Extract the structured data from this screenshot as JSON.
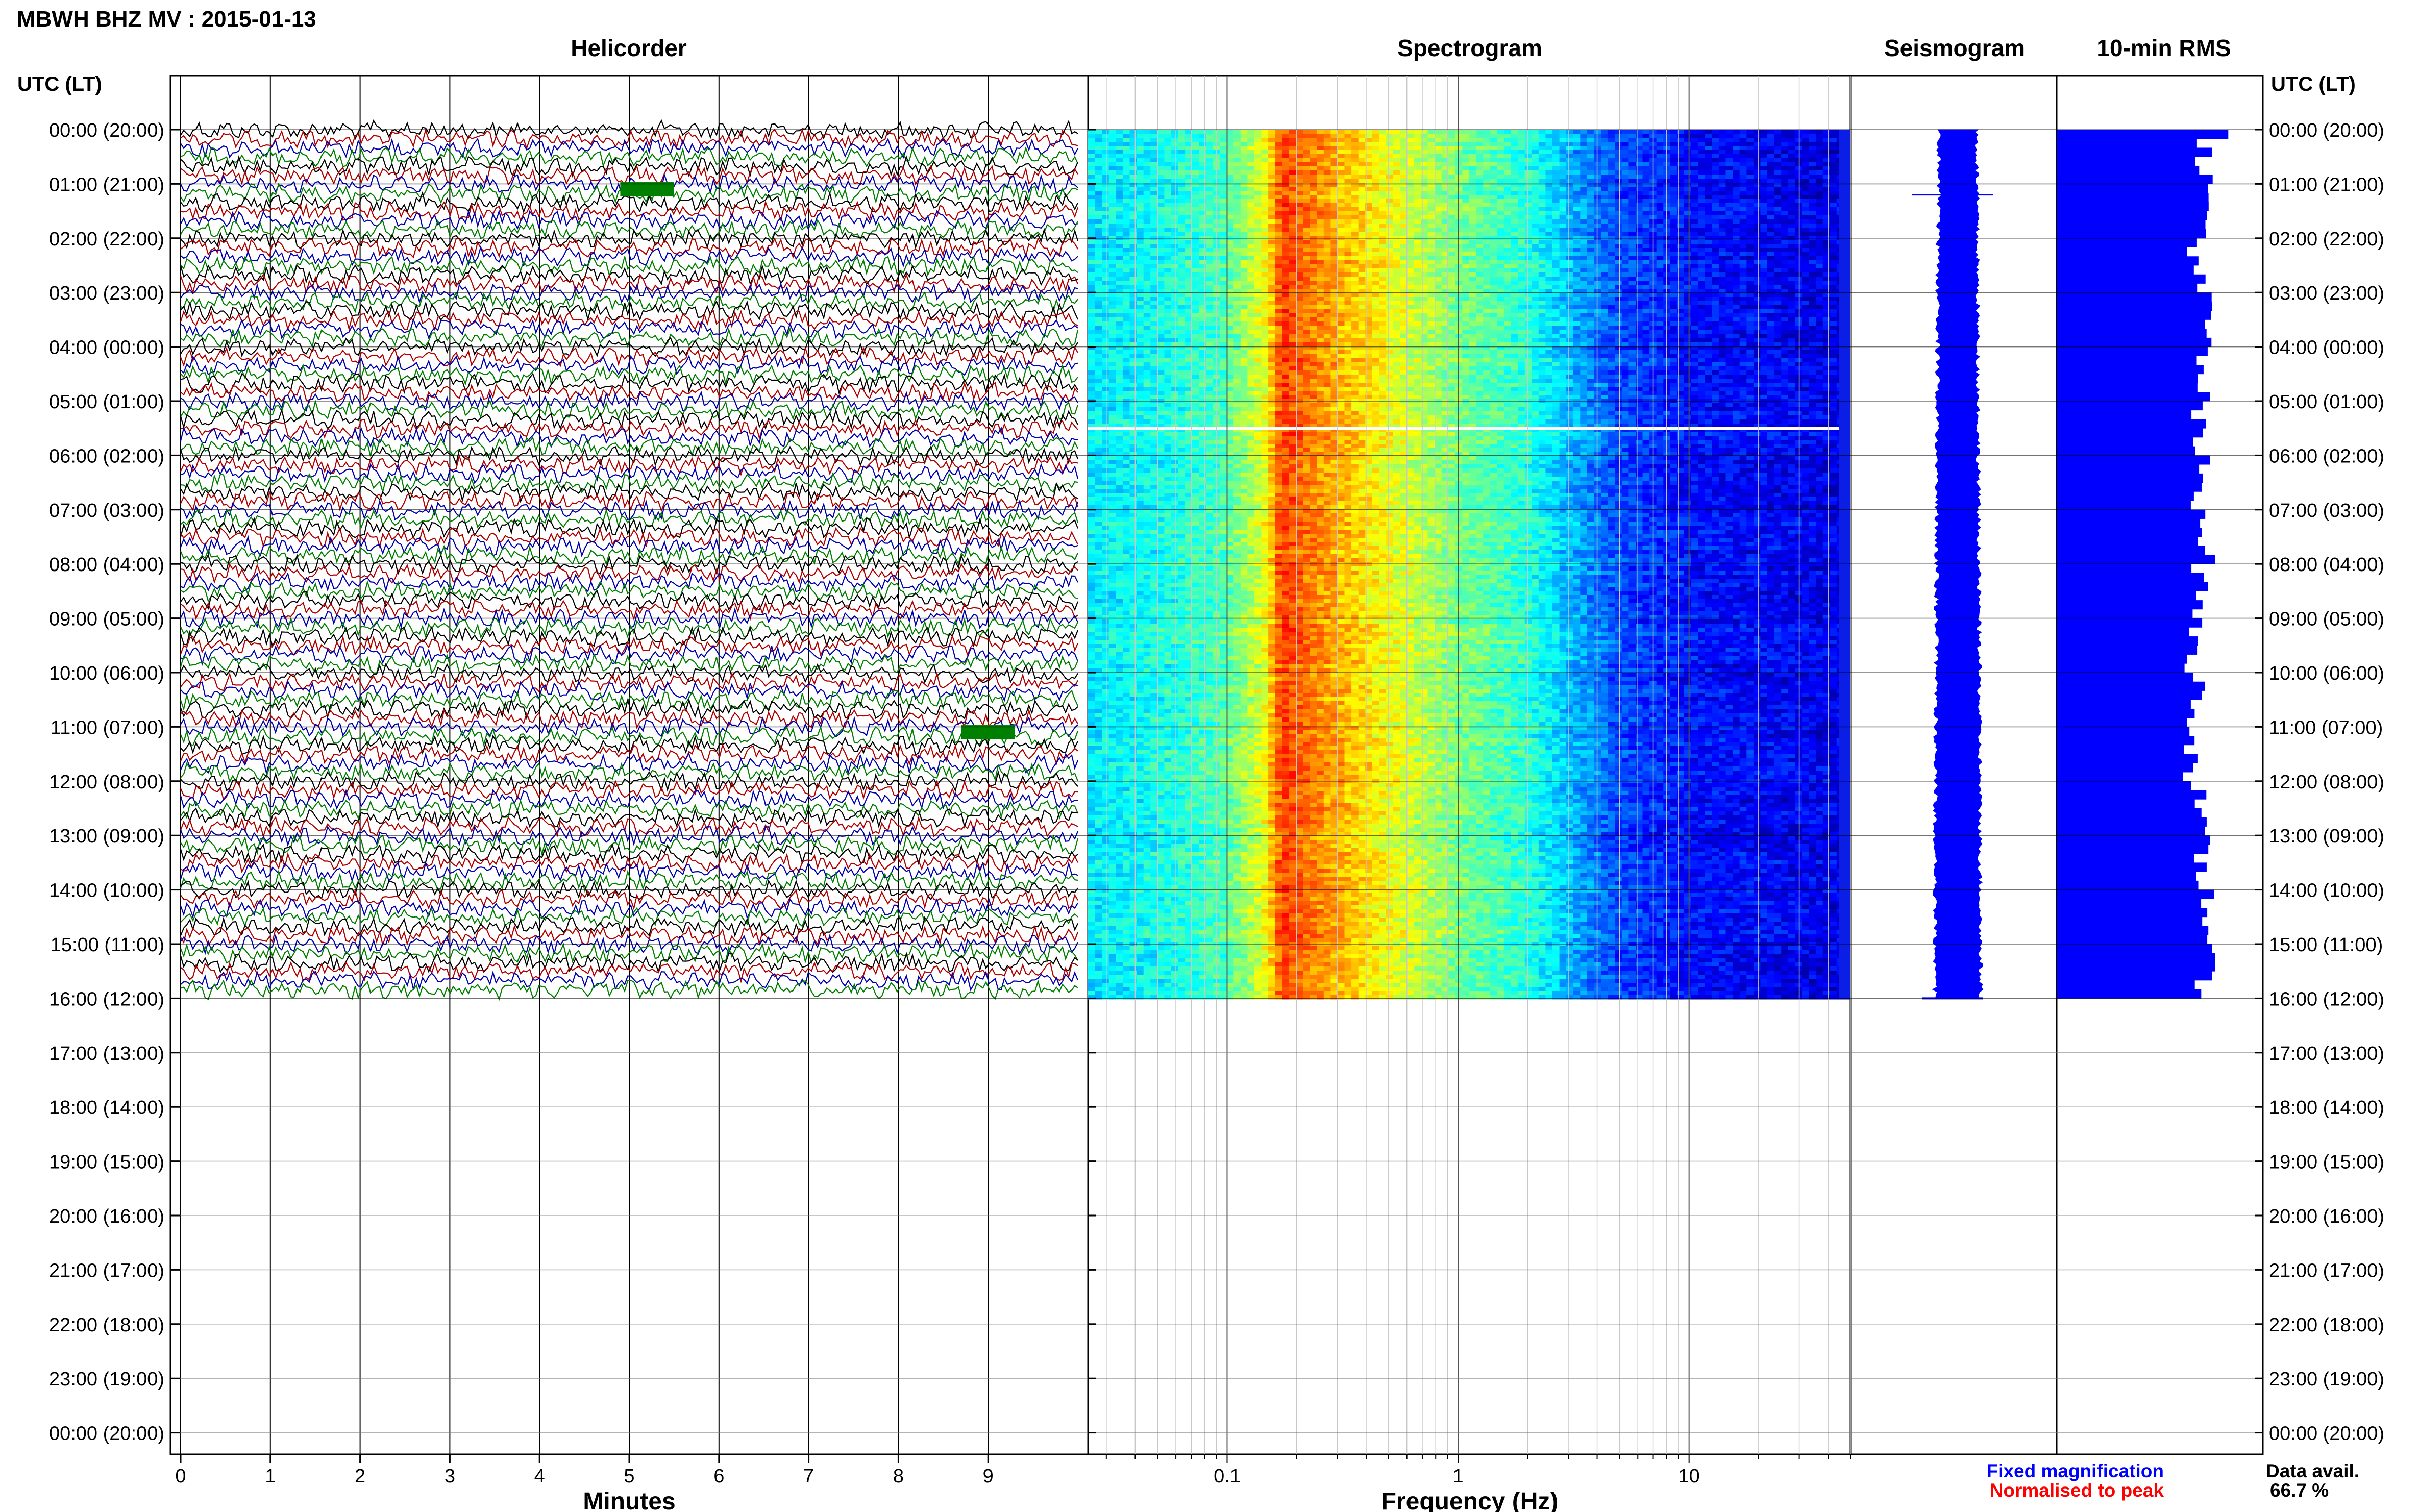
{
  "header": {
    "title": "MBWH BHZ MV : 2015-01-13",
    "time_axis_label_left": "UTC (LT)",
    "time_axis_label_right": "UTC (LT)"
  },
  "panels": {
    "helicorder": "Helicorder",
    "spectrogram": "Spectrogram",
    "seismogram": "Seismogram",
    "rms": "10-min RMS"
  },
  "time_ticks": [
    "00:00 (20:00)",
    "01:00 (21:00)",
    "02:00 (22:00)",
    "03:00 (23:00)",
    "04:00 (00:00)",
    "05:00 (01:00)",
    "06:00 (02:00)",
    "07:00 (03:00)",
    "08:00 (04:00)",
    "09:00 (05:00)",
    "10:00 (06:00)",
    "11:00 (07:00)",
    "12:00 (08:00)",
    "13:00 (09:00)",
    "14:00 (10:00)",
    "15:00 (11:00)",
    "16:00 (12:00)",
    "17:00 (13:00)",
    "18:00 (14:00)",
    "19:00 (15:00)",
    "20:00 (16:00)",
    "21:00 (17:00)",
    "22:00 (18:00)",
    "23:00 (19:00)",
    "00:00 (20:00)"
  ],
  "legend": {
    "fixed": "Fixed magnification",
    "normalised": "Normalised to peak",
    "fixed_color": "#0000ff",
    "normalised_color": "#ff0000"
  },
  "availability": {
    "label": "Data avail.",
    "value": "66.7 %"
  },
  "chart_data": [
    {
      "type": "line",
      "panel": "helicorder",
      "xlabel": "Minutes",
      "x_ticks": [
        "0",
        "1",
        "2",
        "3",
        "4",
        "5",
        "6",
        "7",
        "8",
        "9"
      ],
      "xlim": [
        0,
        10
      ],
      "trace_colors": [
        "#000000",
        "#b00000",
        "#0000b0",
        "#008000"
      ],
      "data_end_hour": 16,
      "events": [
        {
          "hour": 1.1,
          "minute_start": 4.9,
          "minute_end": 5.5,
          "color": "#008000"
        },
        {
          "hour": 11.1,
          "minute_start": 8.7,
          "minute_end": 9.3,
          "color": "#008000"
        }
      ]
    },
    {
      "type": "heatmap",
      "panel": "spectrogram",
      "xlabel": "Frequency (Hz)",
      "x_scale": "log",
      "xlim": [
        0.025,
        50
      ],
      "x_ticks": [
        "0.1",
        "1",
        "10"
      ],
      "colormap": "jet",
      "data_end_hour": 16,
      "gap_hour": 5.5,
      "profile": [
        {
          "f": 0.025,
          "level": 0.35
        },
        {
          "f": 0.06,
          "level": 0.4
        },
        {
          "f": 0.1,
          "level": 0.45
        },
        {
          "f": 0.15,
          "level": 0.6
        },
        {
          "f": 0.18,
          "level": 0.82
        },
        {
          "f": 0.25,
          "level": 0.74
        },
        {
          "f": 0.5,
          "level": 0.62
        },
        {
          "f": 1,
          "level": 0.5
        },
        {
          "f": 2,
          "level": 0.42
        },
        {
          "f": 3,
          "level": 0.32
        },
        {
          "f": 5,
          "level": 0.2
        },
        {
          "f": 10,
          "level": 0.14
        },
        {
          "f": 50,
          "level": 0.1
        }
      ]
    },
    {
      "type": "line",
      "panel": "seismogram",
      "data_end_hour": 16,
      "color": "#0000ff"
    },
    {
      "type": "bar",
      "panel": "rms",
      "orientation": "horizontal",
      "interval_minutes": 10,
      "xlim": [
        0,
        1
      ],
      "data_end_hour": 16,
      "hourly_rms": [
        0.72,
        0.72,
        0.68,
        0.72,
        0.7,
        0.68,
        0.7,
        0.72,
        0.7,
        0.66,
        0.68,
        0.66,
        0.68,
        0.7,
        0.74,
        0.72
      ],
      "color": "#0000ff"
    }
  ]
}
